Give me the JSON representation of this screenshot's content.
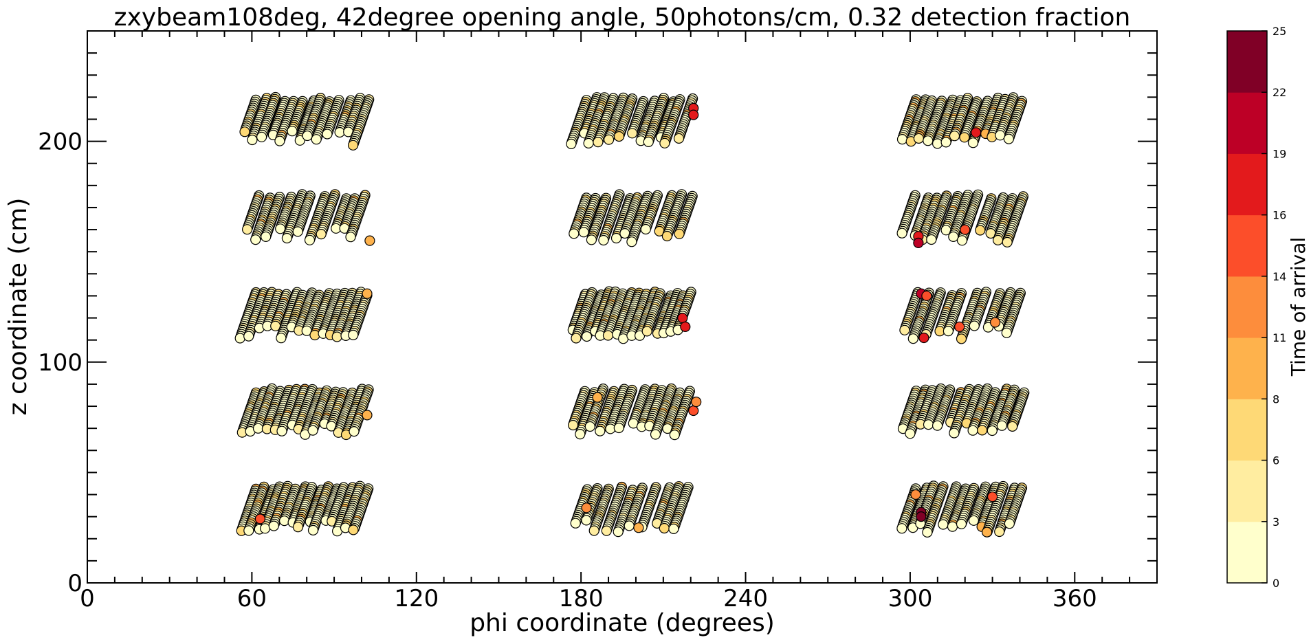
{
  "chart_data": {
    "type": "scatter",
    "title": "zxybeam108deg, 42degree opening angle, 50photons/cm, 0.32 detection fraction",
    "xlabel": "phi coordinate (degrees)",
    "ylabel": "z coordinate (cm)",
    "xlim": [
      0,
      390
    ],
    "ylim": [
      0,
      250
    ],
    "xticks": [
      "0",
      "60",
      "120",
      "180",
      "240",
      "300",
      "360"
    ],
    "yticks": [
      "0",
      "100",
      "200"
    ],
    "grid": false,
    "colorbar": {
      "label": "Time of arrival",
      "ticks": [
        "0",
        "3",
        "6",
        "8",
        "11",
        "14",
        "16",
        "19",
        "22",
        "25"
      ],
      "range": [
        0,
        25
      ],
      "colors": [
        "#ffffcc",
        "#ffeda0",
        "#fed976",
        "#feb24c",
        "#fd8d3c",
        "#fc4e2a",
        "#e31a1c",
        "#bd0026",
        "#800026"
      ]
    },
    "clusters": {
      "phi_groups": [
        [
          60,
          104
        ],
        [
          180,
          222
        ],
        [
          300,
          343
        ]
      ],
      "z_groups": [
        [
          198,
          220
        ],
        [
          154,
          176
        ],
        [
          110,
          132
        ],
        [
          66,
          88
        ],
        [
          22,
          44
        ]
      ]
    },
    "highlights": [
      {
        "x": 63,
        "y": 29,
        "t": 16
      },
      {
        "x": 97,
        "y": 24,
        "t": 8
      },
      {
        "x": 221,
        "y": 215,
        "t": 18
      },
      {
        "x": 221,
        "y": 212,
        "t": 19
      },
      {
        "x": 217,
        "y": 120,
        "t": 17
      },
      {
        "x": 218,
        "y": 116,
        "t": 18
      },
      {
        "x": 221,
        "y": 78,
        "t": 14
      },
      {
        "x": 222,
        "y": 82,
        "t": 13
      },
      {
        "x": 201,
        "y": 25,
        "t": 11
      },
      {
        "x": 182,
        "y": 34,
        "t": 12
      },
      {
        "x": 186,
        "y": 84,
        "t": 10
      },
      {
        "x": 324,
        "y": 204,
        "t": 18
      },
      {
        "x": 303,
        "y": 157,
        "t": 19
      },
      {
        "x": 303,
        "y": 154,
        "t": 20
      },
      {
        "x": 320,
        "y": 160,
        "t": 16
      },
      {
        "x": 304,
        "y": 131,
        "t": 20
      },
      {
        "x": 306,
        "y": 130,
        "t": 14
      },
      {
        "x": 305,
        "y": 111,
        "t": 18
      },
      {
        "x": 318,
        "y": 116,
        "t": 16
      },
      {
        "x": 331,
        "y": 118,
        "t": 13
      },
      {
        "x": 304,
        "y": 32,
        "t": 25
      },
      {
        "x": 304,
        "y": 30,
        "t": 24
      },
      {
        "x": 302,
        "y": 40,
        "t": 13
      },
      {
        "x": 330,
        "y": 39,
        "t": 15
      },
      {
        "x": 328,
        "y": 23,
        "t": 10
      },
      {
        "x": 103,
        "y": 155,
        "t": 9
      },
      {
        "x": 102,
        "y": 131,
        "t": 9
      },
      {
        "x": 102,
        "y": 76,
        "t": 9
      }
    ]
  }
}
